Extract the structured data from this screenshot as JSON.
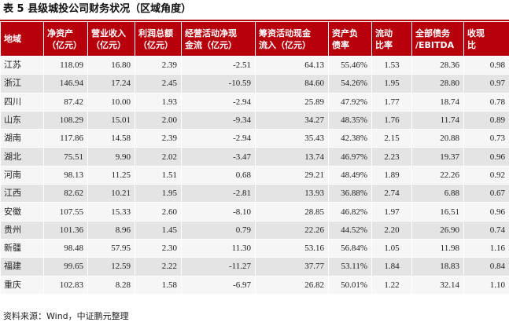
{
  "title": "表 5 县级城投公司财务状况（区域角度）",
  "source": "资料来源：Wind，中证鹏元整理",
  "header": {
    "region": "地域",
    "net_assets": [
      "净资产",
      "（亿元）"
    ],
    "revenue": [
      "营业收入",
      "（亿元）"
    ],
    "profit": [
      "利润总额",
      "（亿元）"
    ],
    "op_cashflow": [
      "经营活动净现",
      "金流（亿元）"
    ],
    "fin_inflow": [
      "筹资活动现金",
      "流入（亿元）"
    ],
    "debt_ratio": [
      "资产负",
      "债率"
    ],
    "current_ratio": [
      "流动",
      "比率"
    ],
    "debt_ebitda": [
      "全部债务",
      "/EBITDA"
    ],
    "cash_ratio": [
      "收现",
      "比"
    ]
  },
  "rows": [
    {
      "region": "江苏",
      "net_assets": "118.09",
      "revenue": "16.80",
      "profit": "2.39",
      "op_cashflow": "-2.51",
      "fin_inflow": "64.13",
      "debt_ratio": "55.46%",
      "current_ratio": "1.53",
      "debt_ebitda": "28.36",
      "cash_ratio": "0.98"
    },
    {
      "region": "浙江",
      "net_assets": "146.94",
      "revenue": "17.24",
      "profit": "2.45",
      "op_cashflow": "-10.59",
      "fin_inflow": "84.60",
      "debt_ratio": "54.26%",
      "current_ratio": "1.95",
      "debt_ebitda": "28.80",
      "cash_ratio": "0.97"
    },
    {
      "region": "四川",
      "net_assets": "87.42",
      "revenue": "10.00",
      "profit": "1.93",
      "op_cashflow": "-2.94",
      "fin_inflow": "25.89",
      "debt_ratio": "47.92%",
      "current_ratio": "1.77",
      "debt_ebitda": "18.74",
      "cash_ratio": "0.78"
    },
    {
      "region": "山东",
      "net_assets": "108.29",
      "revenue": "15.01",
      "profit": "2.00",
      "op_cashflow": "-9.34",
      "fin_inflow": "34.27",
      "debt_ratio": "48.35%",
      "current_ratio": "1.76",
      "debt_ebitda": "11.74",
      "cash_ratio": "0.89"
    },
    {
      "region": "湖南",
      "net_assets": "117.86",
      "revenue": "14.58",
      "profit": "2.39",
      "op_cashflow": "-2.94",
      "fin_inflow": "35.43",
      "debt_ratio": "42.38%",
      "current_ratio": "2.15",
      "debt_ebitda": "20.88",
      "cash_ratio": "0.73"
    },
    {
      "region": "湖北",
      "net_assets": "75.51",
      "revenue": "9.90",
      "profit": "2.02",
      "op_cashflow": "-3.47",
      "fin_inflow": "13.74",
      "debt_ratio": "46.97%",
      "current_ratio": "2.23",
      "debt_ebitda": "19.37",
      "cash_ratio": "0.96"
    },
    {
      "region": "河南",
      "net_assets": "98.13",
      "revenue": "11.25",
      "profit": "1.51",
      "op_cashflow": "0.68",
      "fin_inflow": "29.21",
      "debt_ratio": "48.49%",
      "current_ratio": "1.89",
      "debt_ebitda": "22.26",
      "cash_ratio": "0.92"
    },
    {
      "region": "江西",
      "net_assets": "82.62",
      "revenue": "10.21",
      "profit": "1.95",
      "op_cashflow": "-2.81",
      "fin_inflow": "13.93",
      "debt_ratio": "36.88%",
      "current_ratio": "2.74",
      "debt_ebitda": "6.88",
      "cash_ratio": "0.67"
    },
    {
      "region": "安徽",
      "net_assets": "107.55",
      "revenue": "15.33",
      "profit": "2.60",
      "op_cashflow": "-8.10",
      "fin_inflow": "28.85",
      "debt_ratio": "46.82%",
      "current_ratio": "1.97",
      "debt_ebitda": "16.51",
      "cash_ratio": "0.96"
    },
    {
      "region": "贵州",
      "net_assets": "101.36",
      "revenue": "8.96",
      "profit": "1.45",
      "op_cashflow": "0.79",
      "fin_inflow": "22.26",
      "debt_ratio": "44.52%",
      "current_ratio": "2.20",
      "debt_ebitda": "26.90",
      "cash_ratio": "0.74"
    },
    {
      "region": "新疆",
      "net_assets": "98.48",
      "revenue": "57.95",
      "profit": "2.30",
      "op_cashflow": "11.30",
      "fin_inflow": "53.16",
      "debt_ratio": "56.84%",
      "current_ratio": "1.05",
      "debt_ebitda": "11.98",
      "cash_ratio": "1.16"
    },
    {
      "region": "福建",
      "net_assets": "99.65",
      "revenue": "12.59",
      "profit": "2.22",
      "op_cashflow": "-11.27",
      "fin_inflow": "37.77",
      "debt_ratio": "53.11%",
      "current_ratio": "1.84",
      "debt_ebitda": "18.83",
      "cash_ratio": "0.84"
    },
    {
      "region": "重庆",
      "net_assets": "102.83",
      "revenue": "8.28",
      "profit": "1.58",
      "op_cashflow": "-6.97",
      "fin_inflow": "26.82",
      "debt_ratio": "50.01%",
      "current_ratio": "1.22",
      "debt_ebitda": "32.14",
      "cash_ratio": "1.10"
    }
  ]
}
